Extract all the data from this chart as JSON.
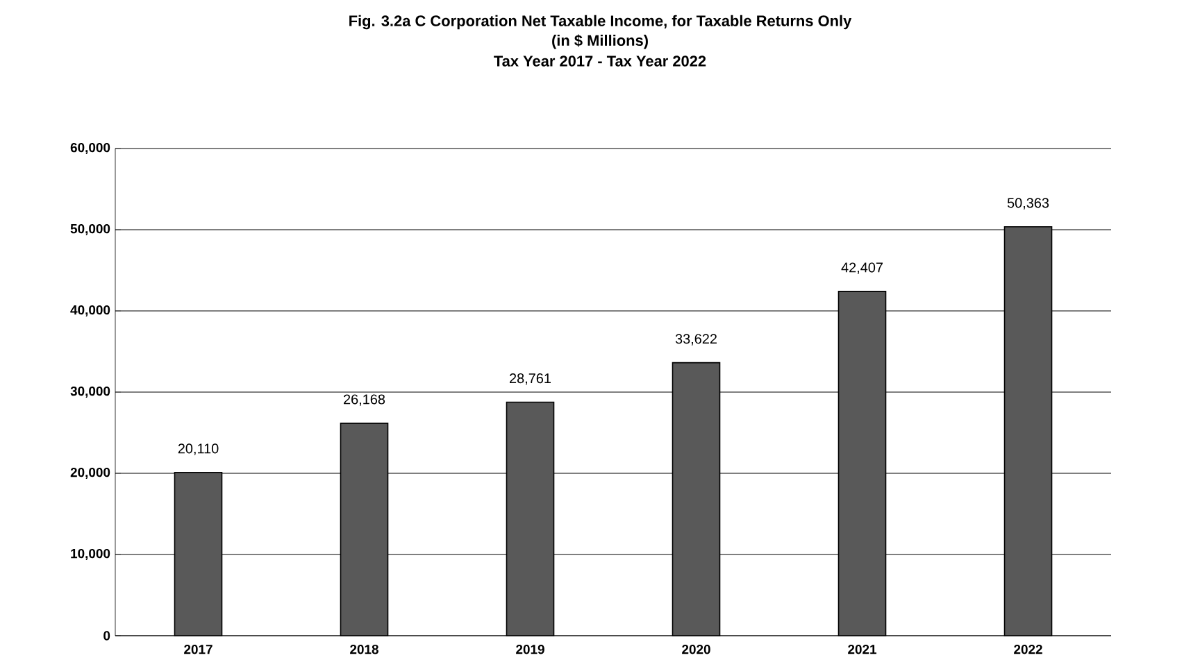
{
  "chart_data": {
    "type": "bar",
    "title": "Fig. 3.2a  C Corporation Net Taxable Income, for Taxable Returns Only",
    "subtitle": "(in $ Millions)",
    "annotations": [
      "Tax Year 2017 - Tax Year 2022"
    ],
    "categories": [
      "2017",
      "2018",
      "2019",
      "2020",
      "2021",
      "2022"
    ],
    "values": [
      20110,
      26168,
      28761,
      33622,
      42407,
      50363
    ],
    "value_labels": [
      "20,110",
      "26,168",
      "28,761",
      "33,622",
      "42,407",
      "50,363"
    ],
    "color": "#595959",
    "ylim": [
      0,
      60000
    ],
    "yticks": [
      {
        "value": 0,
        "label": "0"
      },
      {
        "value": 10000,
        "label": "10,000"
      },
      {
        "value": 20000,
        "label": "20,000"
      },
      {
        "value": 30000,
        "label": "30,000"
      },
      {
        "value": 40000,
        "label": "40,000"
      },
      {
        "value": 50000,
        "label": "50,000"
      },
      {
        "value": 60000,
        "label": "60,000"
      }
    ],
    "grid": "y"
  }
}
